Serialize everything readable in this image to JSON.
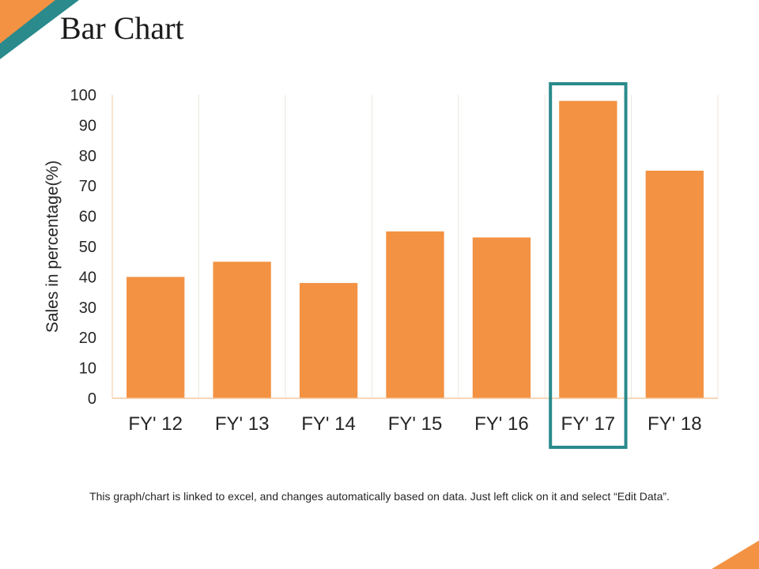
{
  "slide": {
    "title": "Bar Chart",
    "footnote": "This graph/chart is linked to excel, and changes automatically based on data. Just left click on it and select “Edit Data”.",
    "accent_orange": "#f39243",
    "accent_teal": "#2a8a8c"
  },
  "chart_data": {
    "type": "bar",
    "categories": [
      "FY' 12",
      "FY' 13",
      "FY' 14",
      "FY' 15",
      "FY' 16",
      "FY' 17",
      "FY' 18"
    ],
    "values": [
      40,
      45,
      38,
      55,
      53,
      98,
      75
    ],
    "ylabel": "Sales in percentage(%)",
    "ylim": [
      0,
      100
    ],
    "yticks": [
      0,
      10,
      20,
      30,
      40,
      50,
      60,
      70,
      80,
      90,
      100
    ],
    "bar_color": "#f39243",
    "highlight_category": "FY' 17",
    "highlight_color": "#2a8a8c",
    "grid": "vertical-light"
  }
}
